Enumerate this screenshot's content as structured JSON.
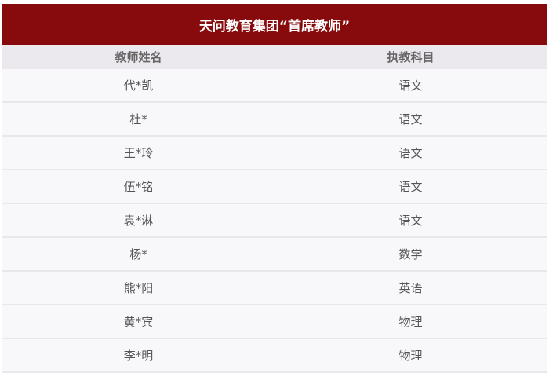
{
  "title": "天问教育集团“首席教师”",
  "colors": {
    "header_bg": "#870a0d",
    "column_header_bg": "#ebe8ee",
    "row_bg": "#f8f7fa"
  },
  "columns": [
    "教师姓名",
    "执教科目"
  ],
  "rows": [
    {
      "name": "代*凯",
      "subject": "语文"
    },
    {
      "name": "杜*",
      "subject": "语文"
    },
    {
      "name": "王*玲",
      "subject": "语文"
    },
    {
      "name": "伍*铭",
      "subject": "语文"
    },
    {
      "name": "袁*淋",
      "subject": "语文"
    },
    {
      "name": "杨*",
      "subject": "数学"
    },
    {
      "name": "熊*阳",
      "subject": "英语"
    },
    {
      "name": "黄*宾",
      "subject": "物理"
    },
    {
      "name": "李*明",
      "subject": "物理"
    }
  ]
}
